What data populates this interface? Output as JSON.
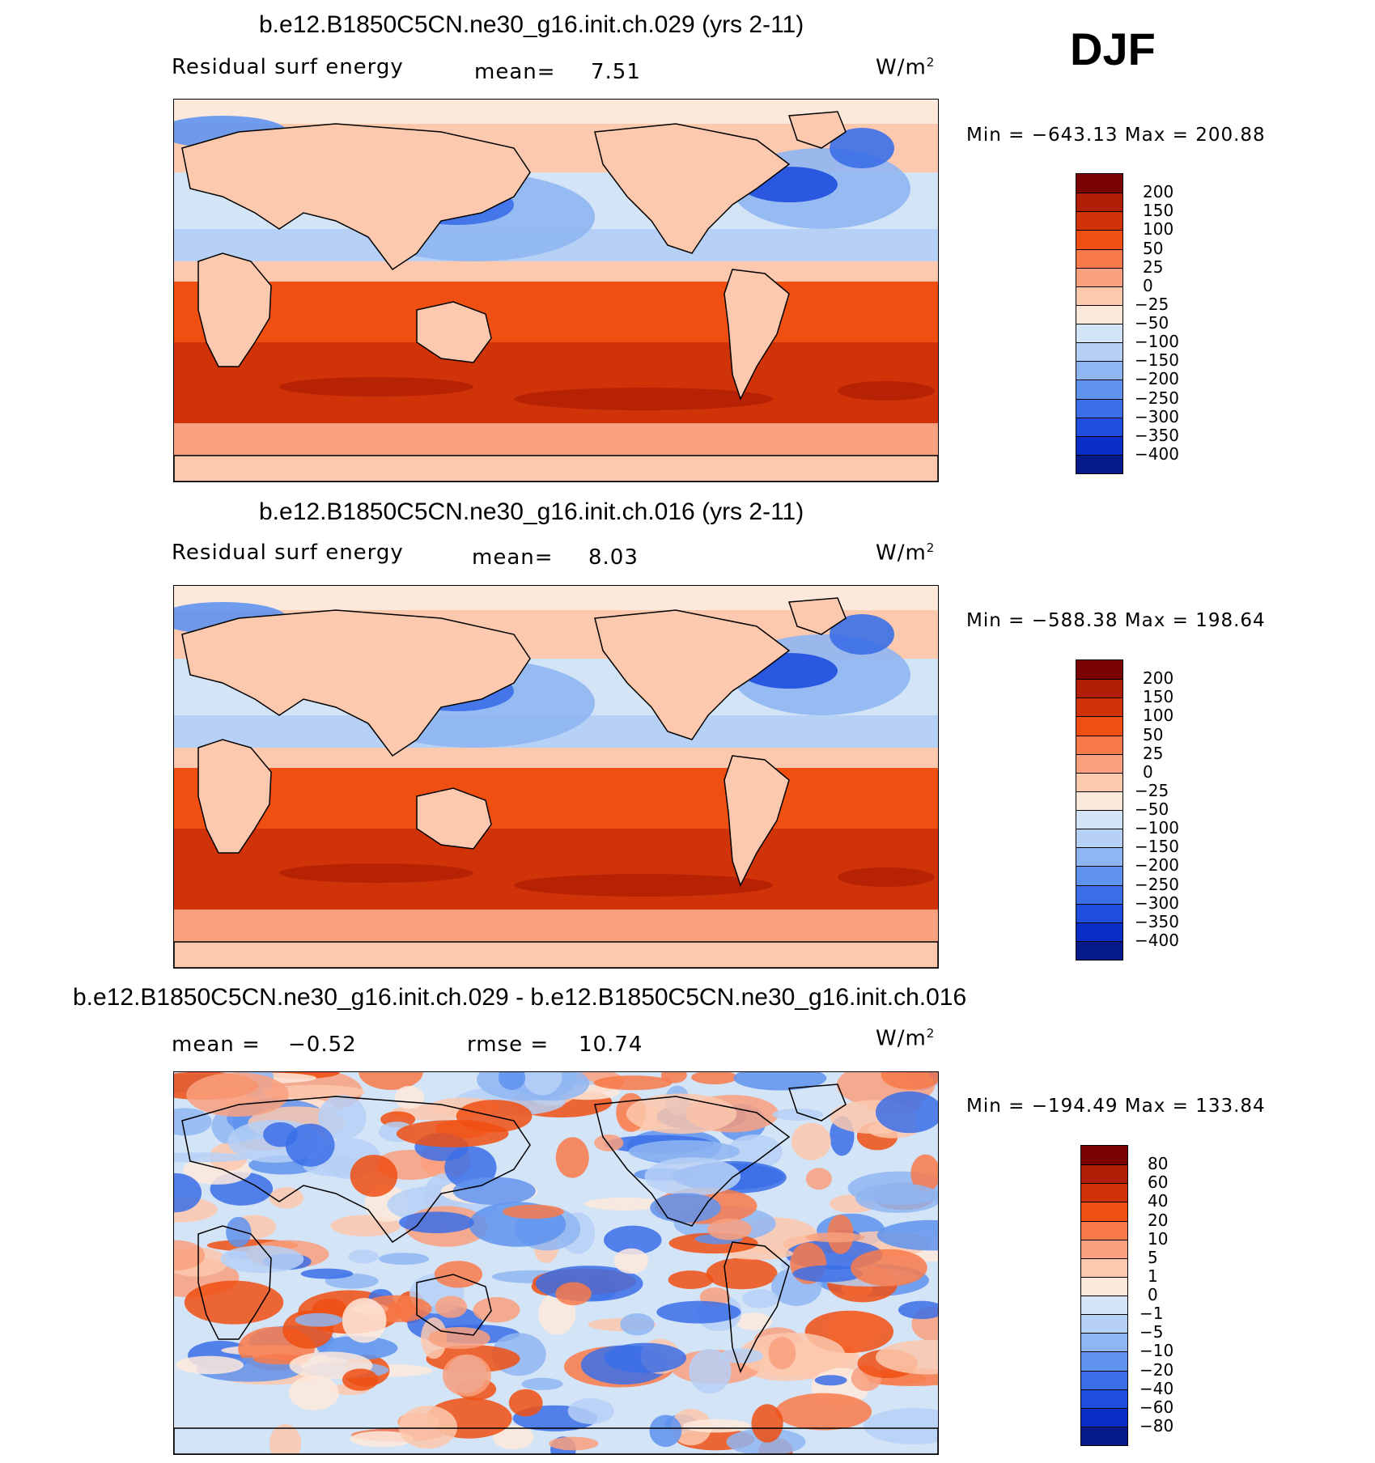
{
  "header": {
    "season": "DJF"
  },
  "units": {
    "base": "W/m",
    "exp": "2"
  },
  "panels": [
    {
      "title": "b.e12.B1850C5CN.ne30_g16.init.ch.029 (yrs 2-11)",
      "variable": "Residual surf energy",
      "stat1_label": "mean=",
      "stat1_value": "7.51",
      "minmax": "Min = −643.13 Max = 200.88",
      "colorbar": {
        "labels": [
          "200",
          "150",
          "100",
          "50",
          "25",
          "0",
          "−25",
          "−50",
          "−100",
          "−150",
          "−200",
          "−250",
          "−300",
          "−350",
          "−400"
        ],
        "colors": [
          "#7a0403",
          "#b01e05",
          "#d03308",
          "#f04f12",
          "#f87a4a",
          "#f9a07e",
          "#fcc8ae",
          "#fde9dc",
          "#d4e4f7",
          "#b6d0f6",
          "#8fb6f2",
          "#5f93ee",
          "#3b6fe8",
          "#1f4edf",
          "#0a2ec8",
          "#061a8c"
        ]
      }
    },
    {
      "title": "b.e12.B1850C5CN.ne30_g16.init.ch.016 (yrs 2-11)",
      "variable": "Residual surf energy",
      "stat1_label": "mean=",
      "stat1_value": "8.03",
      "minmax": "Min = −588.38 Max = 198.64",
      "colorbar": {
        "labels": [
          "200",
          "150",
          "100",
          "50",
          "25",
          "0",
          "−25",
          "−50",
          "−100",
          "−150",
          "−200",
          "−250",
          "−300",
          "−350",
          "−400"
        ],
        "colors": [
          "#7a0403",
          "#b01e05",
          "#d03308",
          "#f04f12",
          "#f87a4a",
          "#f9a07e",
          "#fcc8ae",
          "#fde9dc",
          "#d4e4f7",
          "#b6d0f6",
          "#8fb6f2",
          "#5f93ee",
          "#3b6fe8",
          "#1f4edf",
          "#0a2ec8",
          "#061a8c"
        ]
      }
    },
    {
      "title": "b.e12.B1850C5CN.ne30_g16.init.ch.029 - b.e12.B1850C5CN.ne30_g16.init.ch.016",
      "variable": "",
      "stat1_label": "mean =",
      "stat1_value": "−0.52",
      "stat2_label": "rmse =",
      "stat2_value": "10.74",
      "minmax": "Min = −194.49 Max = 133.84",
      "colorbar": {
        "labels": [
          "80",
          "60",
          "40",
          "20",
          "10",
          "5",
          "1",
          "0",
          "−1",
          "−5",
          "−10",
          "−20",
          "−40",
          "−60",
          "−80"
        ],
        "colors": [
          "#7a0403",
          "#b01e05",
          "#d03308",
          "#f04f12",
          "#f87a4a",
          "#f9a07e",
          "#fcc8ae",
          "#fde9dc",
          "#d4e4f7",
          "#b6d0f6",
          "#8fb6f2",
          "#5f93ee",
          "#3b6fe8",
          "#1f4edf",
          "#0a2ec8",
          "#061a8c"
        ]
      }
    }
  ]
}
